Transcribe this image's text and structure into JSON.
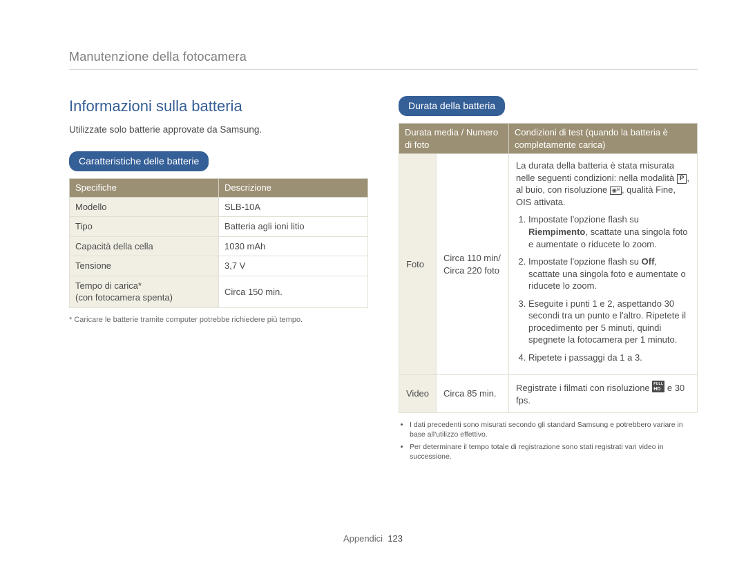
{
  "breadcrumb": "Manutenzione della fotocamera",
  "left": {
    "title": "Informazioni sulla batteria",
    "intro": "Utilizzate solo batterie approvate da Samsung.",
    "pill": "Caratteristiche delle batterie",
    "spec_headers": {
      "col1": "Specifiche",
      "col2": "Descrizione"
    },
    "spec_rows": [
      {
        "label": "Modello",
        "value": "SLB-10A"
      },
      {
        "label": "Tipo",
        "value": "Batteria agli ioni litio"
      },
      {
        "label": "Capacità della cella",
        "value": "1030 mAh"
      },
      {
        "label": "Tensione",
        "value": "3,7 V"
      },
      {
        "label": "Tempo di carica*\n(con fotocamera spenta)",
        "value": "Circa 150 min."
      }
    ],
    "note": "* Caricare le batterie tramite computer potrebbe richiedere più tempo."
  },
  "right": {
    "pill": "Durata della batteria",
    "headers": {
      "col1": "Durata media / Numero di foto",
      "col2": "Condizioni di test (quando la batteria è completamente carica)"
    },
    "photo": {
      "cat": "Foto",
      "val_line1": "Circa 110 min/",
      "val_line2": "Circa 220 foto",
      "cond_intro_1": "La durata della batteria è stata misurata nelle seguenti condizioni: nella modalità ",
      "cond_intro_2": ", al buio, con risoluzione ",
      "cond_intro_3": ", qualità Fine, OIS attivata.",
      "step1_a": "Impostate l'opzione flash su ",
      "step1_bold": "Riempimento",
      "step1_b": ", scattate una singola foto e aumentate o riducete lo zoom.",
      "step2_a": "Impostate l'opzione flash su ",
      "step2_bold": "Off",
      "step2_b": ", scattate una singola foto e aumentate o riducete lo zoom.",
      "step3": "Eseguite i punti 1 e 2, aspettando 30 secondi tra un punto e l'altro. Ripetete il procedimento per 5 minuti, quindi spegnete la fotocamera per 1 minuto.",
      "step4": "Ripetete i passaggi da 1 a 3."
    },
    "video": {
      "cat": "Video",
      "val": "Circa 85 min.",
      "cond_a": "Registrate i filmati con risoluzione ",
      "cond_b": " e 30 fps."
    },
    "bullets": [
      "I dati precedenti sono misurati secondo gli standard Samsung e potrebbero variare in base all'utilizzo effettivo.",
      "Per determinare il tempo totale di registrazione sono stati registrati vari video in successione."
    ]
  },
  "footer": {
    "section": "Appendici",
    "page": "123"
  },
  "colors": {
    "heading_blue": "#355f97",
    "table_header_bg": "#9c9074",
    "table_label_bg": "#f1efe4",
    "border": "#e2e0d4"
  }
}
